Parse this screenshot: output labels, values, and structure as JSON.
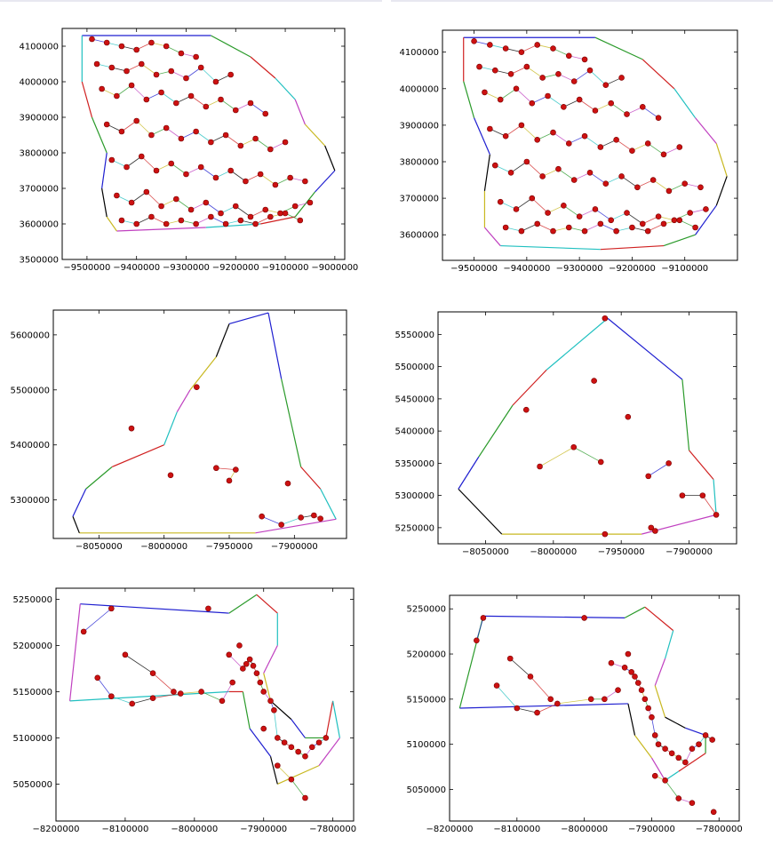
{
  "colors": {
    "boundary": "#000000",
    "point_fill": "#cc1111",
    "point_stroke": "#7a0000",
    "edge_palette": [
      "#1f1fd0",
      "#2a9a2a",
      "#d02020",
      "#20c0c0",
      "#c040c0",
      "#c8b820",
      "#000000"
    ]
  },
  "chart_data": [
    {
      "type": "scatter",
      "title": "",
      "xlabel": "",
      "ylabel": "",
      "xlim": [
        -9550000,
        -8980000
      ],
      "ylim": [
        3500000,
        4150000
      ],
      "xticks": [
        -9500000,
        -9400000,
        -9300000,
        -9200000,
        -9100000,
        -9000000
      ],
      "yticks": [
        3500000,
        3600000,
        3700000,
        3800000,
        3900000,
        4000000,
        4100000
      ],
      "boundary": [
        [
          -9510000,
          4130000
        ],
        [
          -9250000,
          4130000
        ],
        [
          -9170000,
          4070000
        ],
        [
          -9120000,
          4010000
        ],
        [
          -9080000,
          3950000
        ],
        [
          -9060000,
          3880000
        ],
        [
          -9020000,
          3820000
        ],
        [
          -9000000,
          3750000
        ],
        [
          -9040000,
          3690000
        ],
        [
          -9080000,
          3620000
        ],
        [
          -9150000,
          3600000
        ],
        [
          -9260000,
          3590000
        ],
        [
          -9440000,
          3580000
        ],
        [
          -9460000,
          3620000
        ],
        [
          -9470000,
          3700000
        ],
        [
          -9460000,
          3800000
        ],
        [
          -9490000,
          3900000
        ],
        [
          -9510000,
          4000000
        ]
      ],
      "points_x": [
        -9490000,
        -9460000,
        -9430000,
        -9400000,
        -9370000,
        -9340000,
        -9310000,
        -9280000,
        -9480000,
        -9450000,
        -9420000,
        -9390000,
        -9360000,
        -9330000,
        -9300000,
        -9270000,
        -9240000,
        -9210000,
        -9470000,
        -9440000,
        -9410000,
        -9380000,
        -9350000,
        -9320000,
        -9290000,
        -9260000,
        -9230000,
        -9200000,
        -9170000,
        -9140000,
        -9460000,
        -9430000,
        -9400000,
        -9370000,
        -9340000,
        -9310000,
        -9280000,
        -9250000,
        -9220000,
        -9190000,
        -9160000,
        -9130000,
        -9100000,
        -9450000,
        -9420000,
        -9390000,
        -9360000,
        -9330000,
        -9300000,
        -9270000,
        -9240000,
        -9210000,
        -9180000,
        -9150000,
        -9120000,
        -9090000,
        -9060000,
        -9440000,
        -9410000,
        -9380000,
        -9350000,
        -9320000,
        -9290000,
        -9260000,
        -9230000,
        -9200000,
        -9170000,
        -9140000,
        -9110000,
        -9080000,
        -9050000,
        -9430000,
        -9400000,
        -9370000,
        -9340000,
        -9310000,
        -9280000,
        -9250000,
        -9220000,
        -9190000,
        -9160000,
        -9130000,
        -9100000,
        -9070000
      ],
      "points_y": [
        4120000,
        4110000,
        4100000,
        4090000,
        4110000,
        4100000,
        4080000,
        4070000,
        4050000,
        4040000,
        4030000,
        4050000,
        4020000,
        4030000,
        4010000,
        4040000,
        4000000,
        4020000,
        3980000,
        3960000,
        3990000,
        3950000,
        3970000,
        3940000,
        3960000,
        3930000,
        3950000,
        3920000,
        3940000,
        3910000,
        3880000,
        3860000,
        3890000,
        3850000,
        3870000,
        3840000,
        3860000,
        3830000,
        3850000,
        3820000,
        3840000,
        3810000,
        3830000,
        3780000,
        3760000,
        3790000,
        3750000,
        3770000,
        3740000,
        3760000,
        3730000,
        3750000,
        3720000,
        3740000,
        3710000,
        3730000,
        3720000,
        3680000,
        3660000,
        3690000,
        3650000,
        3670000,
        3640000,
        3660000,
        3630000,
        3650000,
        3620000,
        3640000,
        3630000,
        3650000,
        3660000,
        3610000,
        3600000,
        3620000,
        3600000,
        3610000,
        3600000,
        3620000,
        3600000,
        3610000,
        3600000,
        3620000,
        3630000,
        3610000
      ]
    },
    {
      "type": "scatter",
      "title": "",
      "xlabel": "",
      "ylabel": "",
      "xlim": [
        -9560000,
        -9000000
      ],
      "ylim": [
        3530000,
        4160000
      ],
      "xticks": [
        -9500000,
        -9400000,
        -9300000,
        -9200000,
        -9100000
      ],
      "yticks": [
        3600000,
        3700000,
        3800000,
        3900000,
        4000000,
        4100000
      ],
      "boundary": [
        [
          -9520000,
          4140000
        ],
        [
          -9270000,
          4140000
        ],
        [
          -9180000,
          4080000
        ],
        [
          -9120000,
          4000000
        ],
        [
          -9080000,
          3920000
        ],
        [
          -9040000,
          3850000
        ],
        [
          -9020000,
          3760000
        ],
        [
          -9040000,
          3680000
        ],
        [
          -9080000,
          3600000
        ],
        [
          -9140000,
          3570000
        ],
        [
          -9260000,
          3560000
        ],
        [
          -9450000,
          3570000
        ],
        [
          -9480000,
          3620000
        ],
        [
          -9480000,
          3720000
        ],
        [
          -9470000,
          3820000
        ],
        [
          -9500000,
          3920000
        ],
        [
          -9520000,
          4020000
        ]
      ],
      "points_x": [
        -9500000,
        -9470000,
        -9440000,
        -9410000,
        -9380000,
        -9350000,
        -9320000,
        -9290000,
        -9490000,
        -9460000,
        -9430000,
        -9400000,
        -9370000,
        -9340000,
        -9310000,
        -9280000,
        -9250000,
        -9220000,
        -9480000,
        -9450000,
        -9420000,
        -9390000,
        -9360000,
        -9330000,
        -9300000,
        -9270000,
        -9240000,
        -9210000,
        -9180000,
        -9150000,
        -9470000,
        -9440000,
        -9410000,
        -9380000,
        -9350000,
        -9320000,
        -9290000,
        -9260000,
        -9230000,
        -9200000,
        -9170000,
        -9140000,
        -9110000,
        -9460000,
        -9430000,
        -9400000,
        -9370000,
        -9340000,
        -9310000,
        -9280000,
        -9250000,
        -9220000,
        -9190000,
        -9160000,
        -9130000,
        -9100000,
        -9070000,
        -9450000,
        -9420000,
        -9390000,
        -9360000,
        -9330000,
        -9300000,
        -9270000,
        -9240000,
        -9210000,
        -9180000,
        -9150000,
        -9120000,
        -9090000,
        -9060000,
        -9440000,
        -9410000,
        -9380000,
        -9350000,
        -9320000,
        -9290000,
        -9260000,
        -9230000,
        -9200000,
        -9170000,
        -9140000,
        -9110000,
        -9080000
      ],
      "points_y": [
        4130000,
        4120000,
        4110000,
        4100000,
        4120000,
        4110000,
        4090000,
        4080000,
        4060000,
        4050000,
        4040000,
        4060000,
        4030000,
        4040000,
        4020000,
        4050000,
        4010000,
        4030000,
        3990000,
        3970000,
        4000000,
        3960000,
        3980000,
        3950000,
        3970000,
        3940000,
        3960000,
        3930000,
        3950000,
        3920000,
        3890000,
        3870000,
        3900000,
        3860000,
        3880000,
        3850000,
        3870000,
        3840000,
        3860000,
        3830000,
        3850000,
        3820000,
        3840000,
        3790000,
        3770000,
        3800000,
        3760000,
        3780000,
        3750000,
        3770000,
        3740000,
        3760000,
        3730000,
        3750000,
        3720000,
        3740000,
        3730000,
        3690000,
        3670000,
        3700000,
        3660000,
        3680000,
        3650000,
        3670000,
        3640000,
        3660000,
        3630000,
        3650000,
        3640000,
        3660000,
        3670000,
        3620000,
        3610000,
        3630000,
        3610000,
        3620000,
        3610000,
        3630000,
        3610000,
        3620000,
        3610000,
        3630000,
        3640000,
        3620000
      ]
    },
    {
      "type": "scatter",
      "title": "",
      "xlabel": "",
      "ylabel": "",
      "xlim": [
        -8085000,
        -7860000
      ],
      "ylim": [
        5230000,
        5645000
      ],
      "xticks": [
        -8050000,
        -8000000,
        -7950000,
        -7900000
      ],
      "yticks": [
        5300000,
        5400000,
        5500000,
        5600000
      ],
      "boundary": [
        [
          -7920000,
          5640000
        ],
        [
          -7910000,
          5520000
        ],
        [
          -7895000,
          5360000
        ],
        [
          -7880000,
          5320000
        ],
        [
          -7868000,
          5265000
        ],
        [
          -7930000,
          5240000
        ],
        [
          -8065000,
          5240000
        ],
        [
          -8070000,
          5270000
        ],
        [
          -8060000,
          5320000
        ],
        [
          -8040000,
          5360000
        ],
        [
          -8000000,
          5400000
        ],
        [
          -7990000,
          5460000
        ],
        [
          -7980000,
          5500000
        ],
        [
          -7960000,
          5560000
        ],
        [
          -7950000,
          5620000
        ]
      ],
      "points_x": [
        -7975000,
        -8025000,
        -7995000,
        -7960000,
        -7945000,
        -7950000,
        -7905000,
        -7925000,
        -7910000,
        -7895000,
        -7885000,
        -7880000
      ],
      "points_y": [
        5505000,
        5430000,
        5345000,
        5358000,
        5355000,
        5335000,
        5330000,
        5270000,
        5255000,
        5268000,
        5272000,
        5266000
      ]
    },
    {
      "type": "scatter",
      "title": "",
      "xlabel": "",
      "ylabel": "",
      "xlim": [
        -8085000,
        -7865000
      ],
      "ylim": [
        5225000,
        5585000
      ],
      "xticks": [
        -8050000,
        -8000000,
        -7950000,
        -7900000
      ],
      "yticks": [
        5250000,
        5300000,
        5350000,
        5400000,
        5450000,
        5500000,
        5550000
      ],
      "boundary": [
        [
          -7960000,
          5575000
        ],
        [
          -7905000,
          5480000
        ],
        [
          -7900000,
          5370000
        ],
        [
          -7882000,
          5325000
        ],
        [
          -7880000,
          5270000
        ],
        [
          -7935000,
          5240000
        ],
        [
          -8038000,
          5240000
        ],
        [
          -8070000,
          5310000
        ],
        [
          -8055000,
          5360000
        ],
        [
          -8030000,
          5440000
        ],
        [
          -8005000,
          5495000
        ]
      ],
      "points_x": [
        -7962000,
        -7970000,
        -7945000,
        -8020000,
        -8010000,
        -7985000,
        -7965000,
        -7930000,
        -7915000,
        -7905000,
        -7890000,
        -7880000,
        -7928000,
        -7925000,
        -7962000
      ],
      "points_y": [
        5575000,
        5478000,
        5422000,
        5433000,
        5345000,
        5375000,
        5352000,
        5330000,
        5350000,
        5300000,
        5300000,
        5270000,
        5250000,
        5245000,
        5240000
      ]
    },
    {
      "type": "scatter",
      "title": "",
      "xlabel": "",
      "ylabel": "",
      "xlim": [
        -8200000,
        -7770000
      ],
      "ylim": [
        5010000,
        5262000
      ],
      "xticks": [
        -8200000,
        -8100000,
        -8000000,
        -7900000,
        -7800000
      ],
      "yticks": [
        5050000,
        5100000,
        5150000,
        5200000,
        5250000
      ],
      "boundary": [
        [
          -8165000,
          5245000
        ],
        [
          -7950000,
          5235000
        ],
        [
          -7910000,
          5255000
        ],
        [
          -7880000,
          5235000
        ],
        [
          -7880000,
          5200000
        ],
        [
          -7900000,
          5170000
        ],
        [
          -7890000,
          5140000
        ],
        [
          -7860000,
          5120000
        ],
        [
          -7840000,
          5100000
        ],
        [
          -7810000,
          5100000
        ],
        [
          -7800000,
          5140000
        ],
        [
          -7790000,
          5100000
        ],
        [
          -7820000,
          5070000
        ],
        [
          -7880000,
          5050000
        ],
        [
          -7890000,
          5080000
        ],
        [
          -7920000,
          5110000
        ],
        [
          -7930000,
          5150000
        ],
        [
          -7950000,
          5150000
        ],
        [
          -8180000,
          5140000
        ]
      ],
      "points_x": [
        -8160000,
        -8120000,
        -8100000,
        -8060000,
        -8030000,
        -7980000,
        -7950000,
        -7930000,
        -7925000,
        -7920000,
        -7915000,
        -7910000,
        -7905000,
        -7900000,
        -7890000,
        -7885000,
        -7880000,
        -7870000,
        -7860000,
        -7850000,
        -7840000,
        -7830000,
        -7820000,
        -7810000,
        -7900000,
        -7880000,
        -7860000,
        -7840000,
        -8140000,
        -8120000,
        -8090000,
        -8060000,
        -8020000,
        -7990000,
        -7960000,
        -7945000,
        -7935000
      ],
      "points_y": [
        5215000,
        5240000,
        5190000,
        5170000,
        5150000,
        5240000,
        5190000,
        5175000,
        5180000,
        5185000,
        5178000,
        5170000,
        5160000,
        5150000,
        5140000,
        5130000,
        5100000,
        5095000,
        5090000,
        5085000,
        5080000,
        5090000,
        5095000,
        5100000,
        5110000,
        5070000,
        5055000,
        5035000,
        5165000,
        5145000,
        5137000,
        5143000,
        5148000,
        5150000,
        5140000,
        5160000,
        5200000
      ]
    },
    {
      "type": "scatter",
      "title": "",
      "xlabel": "",
      "ylabel": "",
      "xlim": [
        -8200000,
        -7770000
      ],
      "ylim": [
        5015000,
        5265000
      ],
      "xticks": [
        -8200000,
        -8100000,
        -8000000,
        -7900000,
        -7800000
      ],
      "yticks": [
        5050000,
        5100000,
        5150000,
        5200000,
        5250000
      ],
      "boundary": [
        [
          -8150000,
          5242000
        ],
        [
          -7940000,
          5240000
        ],
        [
          -7910000,
          5252000
        ],
        [
          -7868000,
          5226000
        ],
        [
          -7880000,
          5195000
        ],
        [
          -7895000,
          5165000
        ],
        [
          -7880000,
          5130000
        ],
        [
          -7850000,
          5118000
        ],
        [
          -7820000,
          5110000
        ],
        [
          -7820000,
          5090000
        ],
        [
          -7860000,
          5070000
        ],
        [
          -7880000,
          5060000
        ],
        [
          -7900000,
          5085000
        ],
        [
          -7925000,
          5110000
        ],
        [
          -7935000,
          5145000
        ],
        [
          -8185000,
          5140000
        ]
      ],
      "points_x": [
        -8160000,
        -8150000,
        -8110000,
        -8080000,
        -8050000,
        -8000000,
        -7960000,
        -7940000,
        -7930000,
        -7925000,
        -7920000,
        -7915000,
        -7910000,
        -7905000,
        -7900000,
        -7895000,
        -7890000,
        -7880000,
        -7870000,
        -7860000,
        -7850000,
        -7840000,
        -7830000,
        -7820000,
        -7810000,
        -7895000,
        -7880000,
        -7860000,
        -7840000,
        -8130000,
        -8100000,
        -8070000,
        -8040000,
        -7990000,
        -7970000,
        -7950000,
        -7935000,
        -7808000
      ],
      "points_y": [
        5215000,
        5240000,
        5195000,
        5175000,
        5150000,
        5240000,
        5190000,
        5185000,
        5180000,
        5175000,
        5168000,
        5160000,
        5150000,
        5140000,
        5130000,
        5110000,
        5100000,
        5095000,
        5090000,
        5085000,
        5080000,
        5095000,
        5100000,
        5110000,
        5105000,
        5065000,
        5060000,
        5040000,
        5035000,
        5165000,
        5140000,
        5135000,
        5145000,
        5150000,
        5150000,
        5160000,
        5200000,
        5025000
      ]
    }
  ]
}
